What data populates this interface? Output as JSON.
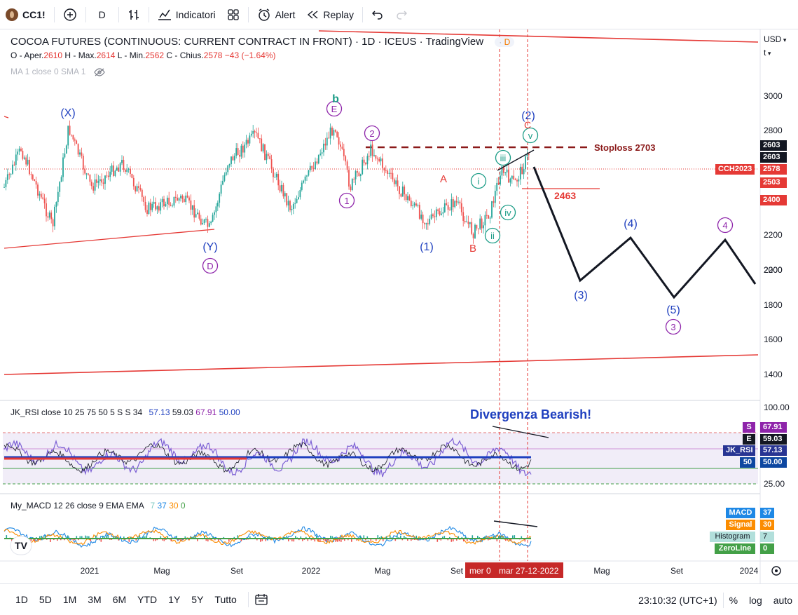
{
  "toolbar": {
    "symbol": "CC1!",
    "interval": "D",
    "indicators_label": "Indicatori",
    "alert_label": "Alert",
    "replay_label": "Replay"
  },
  "chart": {
    "title": "COCOA FUTURES (CONTINUOUS: CURRENT CONTRACT IN FRONT) · 1D · ICEUS · TradingView",
    "title_badge": "D",
    "ohlc": {
      "o_label": "O - Aper.",
      "o_value": "2610",
      "h_label": "H - Max.",
      "h_value": "2614",
      "l_label": "L - Min.",
      "l_value": "2562",
      "c_label": "C - Chius.",
      "c_value": "2578",
      "change": "−43 (−1.64%)"
    },
    "ma_legend": "MA 1 close 0 SMA 1",
    "currency": "USD",
    "unit": "t"
  },
  "price_axis": {
    "ticks": [
      "3000",
      "2800",
      "2600",
      "2400",
      "2200",
      "2000",
      "1800",
      "1600",
      "1400"
    ],
    "tags": [
      {
        "text": "2603",
        "bg": "#131722"
      },
      {
        "text": "2603",
        "bg": "#131722"
      },
      {
        "text": "2578",
        "bg": "#e53935"
      },
      {
        "text": "2503",
        "bg": "#e53935"
      },
      {
        "text": "2400",
        "bg": "#e53935"
      }
    ],
    "symbol_tag": "CCH2023"
  },
  "annotations": {
    "stoploss": "Stoploss 2703",
    "level_2463": "2463",
    "divergence": "Divergenza Bearish!",
    "waves": {
      "X": "(X)",
      "Y": "(Y)",
      "D": "D",
      "E": "E",
      "b": "b",
      "c1": "1",
      "c2": "2",
      "w1": "(1)",
      "w2": "(2)",
      "w3": "(3)",
      "w4": "(4)",
      "w5": "(5)",
      "A": "A",
      "B": "B",
      "C": "C",
      "i": "i",
      "ii": "ii",
      "iii": "iii",
      "iv": "iv",
      "v": "v",
      "c3": "3",
      "c4": "4"
    }
  },
  "rsi": {
    "legend_name": "JK_RSI",
    "legend_params": "close 10 25 75 50 5 S S 34",
    "v1": "57.13",
    "v2": "59.03",
    "v3": "67.91",
    "v4": "50.00",
    "ticks": [
      "100.00",
      "25.00"
    ],
    "tags": [
      {
        "label": "S",
        "value": "67.91"
      },
      {
        "label": "E",
        "value": "59.03"
      },
      {
        "label": "JK_RSI",
        "value": "57.13"
      },
      {
        "label": "50",
        "value": "50.00"
      }
    ]
  },
  "macd": {
    "legend_name": "My_MACD",
    "legend_params": "12 26 close 9 EMA EMA",
    "v1": "7",
    "v2": "37",
    "v3": "30",
    "v4": "0",
    "tags": [
      {
        "label": "MACD",
        "value": "37"
      },
      {
        "label": "Signal",
        "value": "30"
      },
      {
        "label": "Histogram",
        "value": "7"
      },
      {
        "label": "ZeroLine",
        "value": "0"
      }
    ]
  },
  "time_axis": {
    "ticks": [
      "2021",
      "Mag",
      "Set",
      "2022",
      "Mag",
      "Set",
      "Mag",
      "Set",
      "2024"
    ],
    "cursor_left": "mer 0",
    "cursor_right": "mar 27-12-2022"
  },
  "bottombar": {
    "ranges": [
      "1D",
      "5D",
      "1M",
      "3M",
      "6M",
      "YTD",
      "1Y",
      "5Y",
      "Tutto"
    ],
    "clock": "23:10:32 (UTC+1)",
    "pct": "%",
    "log": "log",
    "auto": "auto"
  },
  "colors": {
    "wave_blue": "#1e3fbf",
    "wave_purple": "#8e24aa",
    "wave_teal": "#1a9c86",
    "red": "#e53935",
    "dark_red": "#8b1a1a"
  }
}
